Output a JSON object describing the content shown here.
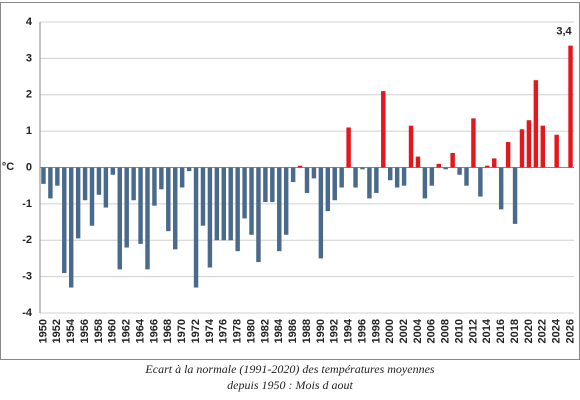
{
  "chart_data": {
    "type": "bar",
    "y_label": "°C",
    "caption": [
      "Ecart à la normale (1991-2020) des températures moyennes",
      "depuis 1950 : Mois d aout"
    ],
    "categories": [
      "1950",
      null,
      "1952",
      null,
      "1954",
      null,
      "1956",
      null,
      "1958",
      null,
      "1960",
      null,
      "1962",
      null,
      "1964",
      null,
      "1966",
      null,
      "1968",
      null,
      "1970",
      null,
      "1972",
      null,
      "1974",
      null,
      "1976",
      null,
      "1978",
      null,
      "1980",
      null,
      "1982",
      null,
      "1984",
      null,
      "1986",
      null,
      "1988",
      null,
      "1990",
      null,
      "1992",
      null,
      "1994",
      null,
      "1996",
      null,
      "1998",
      null,
      "2000",
      null,
      "2002",
      null,
      "2004",
      null,
      "2006",
      null,
      "2008",
      null,
      "2010",
      null,
      "2012",
      null,
      "2014",
      null,
      "2016",
      null,
      "2018",
      null,
      "2020",
      null,
      "2022",
      null,
      "2024",
      null,
      "2026"
    ],
    "values": [
      -0.45,
      -0.85,
      -0.5,
      -2.9,
      -3.3,
      -1.95,
      -0.9,
      -1.6,
      -0.75,
      -1.1,
      -0.2,
      -2.8,
      -2.2,
      -0.9,
      -2.1,
      -2.8,
      -1.05,
      -0.6,
      -1.75,
      -2.25,
      -0.55,
      -0.1,
      -3.3,
      -1.6,
      -2.75,
      -2.0,
      -2.0,
      -2.0,
      -2.3,
      -1.4,
      -1.85,
      -2.6,
      -0.95,
      -0.95,
      -2.3,
      -1.85,
      -0.4,
      0.05,
      -0.7,
      -0.3,
      -2.5,
      -1.2,
      -0.9,
      -0.55,
      1.1,
      -0.55,
      -0.05,
      -0.85,
      -0.7,
      2.1,
      -0.35,
      -0.55,
      -0.5,
      1.15,
      0.3,
      -0.85,
      -0.5,
      0.1,
      -0.05,
      0.4,
      -0.2,
      -0.5,
      1.35,
      -0.8,
      0.05,
      0.25,
      -1.15,
      0.7,
      -1.55,
      1.05,
      1.3,
      2.4,
      1.15,
      null,
      0.9,
      null,
      3.35
    ],
    "value_labels": [
      null,
      null,
      null,
      null,
      null,
      null,
      null,
      null,
      null,
      null,
      null,
      null,
      null,
      null,
      null,
      null,
      null,
      null,
      null,
      null,
      null,
      null,
      null,
      null,
      null,
      null,
      null,
      null,
      null,
      null,
      null,
      null,
      null,
      null,
      null,
      null,
      null,
      null,
      null,
      null,
      null,
      null,
      null,
      null,
      null,
      null,
      null,
      null,
      null,
      null,
      null,
      null,
      null,
      null,
      null,
      null,
      null,
      null,
      null,
      null,
      null,
      null,
      null,
      null,
      null,
      null,
      null,
      null,
      null,
      null,
      null,
      null,
      null,
      null,
      null,
      null,
      "3,4"
    ],
    "colors": {
      "positive": "#e3171c",
      "negative": "#4a6a8c"
    },
    "ylim": [
      -4,
      4
    ],
    "yticks": [
      -4,
      -3,
      -2,
      -1,
      0,
      1,
      2,
      3,
      4
    ],
    "grid": true
  }
}
